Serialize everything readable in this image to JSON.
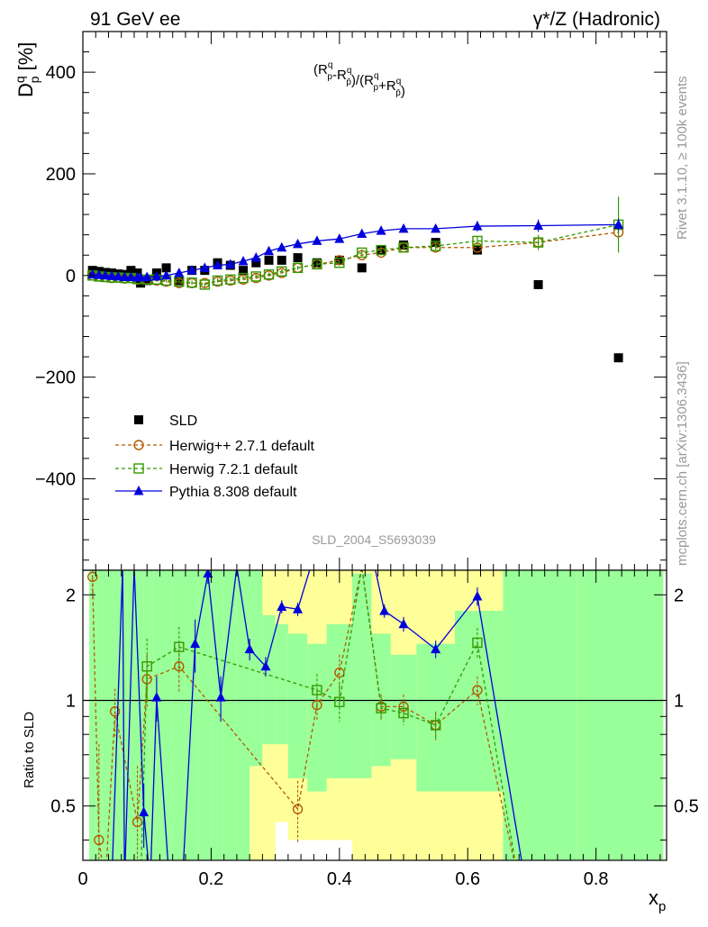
{
  "header": {
    "left": "91 GeV ee",
    "right": "γ*/Z (Hadronic)"
  },
  "side_labels": {
    "rivet": "Rivet 3.1.10, ≥ 100k events",
    "mcplots": "mcplots.cern.ch [arXiv:1306.3436]"
  },
  "analysis_id": "SLD_2004_S5693039",
  "annotation": "(R^q_p - R^q_p̄)/(R^q_p + R^q_p̄)",
  "colors": {
    "sld": "#000000",
    "herwigpp": "#b35900",
    "herwig7": "#339900",
    "pythia": "#0000dd",
    "band_green": "#99ff99",
    "band_yellow": "#ffff99"
  },
  "chart_data": [
    {
      "type": "scatter",
      "ylabel": "D^q_p [%]",
      "xlim": [
        0,
        0.91
      ],
      "ylim": [
        -580,
        480
      ],
      "yticks": [
        -400,
        -200,
        0,
        200,
        400
      ],
      "ytick_labels": [
        "−400",
        "−200",
        "0",
        "200",
        "400"
      ],
      "legend_position": "lower-left",
      "series": [
        {
          "name": "SLD",
          "marker": "square-filled",
          "x": [
            0.015,
            0.025,
            0.035,
            0.045,
            0.055,
            0.065,
            0.075,
            0.085,
            0.09,
            0.1,
            0.115,
            0.13,
            0.15,
            0.17,
            0.19,
            0.21,
            0.23,
            0.25,
            0.27,
            0.29,
            0.31,
            0.335,
            0.365,
            0.4,
            0.435,
            0.465,
            0.5,
            0.55,
            0.615,
            0.71,
            0.835
          ],
          "y": [
            10,
            8,
            6,
            5,
            3,
            2,
            10,
            5,
            -15,
            -10,
            5,
            15,
            -10,
            10,
            10,
            25,
            20,
            10,
            25,
            30,
            30,
            35,
            25,
            30,
            15,
            50,
            60,
            65,
            50,
            -18,
            -162
          ]
        },
        {
          "name": "Herwig++ 2.7.1 default",
          "marker": "circle-open",
          "line": "dashed",
          "x": [
            0.015,
            0.025,
            0.035,
            0.045,
            0.055,
            0.065,
            0.075,
            0.085,
            0.1,
            0.115,
            0.13,
            0.15,
            0.17,
            0.19,
            0.21,
            0.23,
            0.25,
            0.27,
            0.29,
            0.31,
            0.335,
            0.365,
            0.4,
            0.435,
            0.465,
            0.5,
            0.55,
            0.615,
            0.71,
            0.835
          ],
          "y": [
            0,
            -2,
            -3,
            -5,
            -4,
            -6,
            -5,
            -8,
            -8,
            -10,
            -12,
            -15,
            -15,
            -15,
            -12,
            -10,
            -8,
            -5,
            0,
            5,
            15,
            22,
            30,
            40,
            45,
            55,
            55,
            55,
            65,
            85
          ]
        },
        {
          "name": "Herwig 7.2.1 default",
          "marker": "square-open",
          "line": "dashed",
          "x": [
            0.015,
            0.025,
            0.035,
            0.045,
            0.055,
            0.065,
            0.075,
            0.085,
            0.1,
            0.115,
            0.13,
            0.15,
            0.17,
            0.19,
            0.21,
            0.23,
            0.25,
            0.27,
            0.29,
            0.31,
            0.335,
            0.365,
            0.4,
            0.435,
            0.465,
            0.5,
            0.55,
            0.615,
            0.71,
            0.835
          ],
          "y": [
            0,
            -2,
            -3,
            -4,
            -4,
            -5,
            -5,
            -7,
            -8,
            -8,
            -10,
            -12,
            -14,
            -18,
            -10,
            -8,
            -5,
            -2,
            2,
            8,
            15,
            22,
            25,
            45,
            50,
            55,
            58,
            68,
            65,
            100
          ],
          "err": [
            3,
            3,
            3,
            3,
            3,
            3,
            3,
            3,
            4,
            4,
            4,
            4,
            4,
            4,
            4,
            4,
            4,
            4,
            4,
            4,
            4,
            5,
            5,
            6,
            6,
            6,
            7,
            8,
            15,
            55
          ]
        },
        {
          "name": "Pythia 8.308 default",
          "marker": "triangle-filled",
          "line": "solid",
          "x": [
            0.015,
            0.025,
            0.035,
            0.045,
            0.055,
            0.065,
            0.075,
            0.085,
            0.09,
            0.1,
            0.115,
            0.13,
            0.15,
            0.17,
            0.19,
            0.21,
            0.23,
            0.25,
            0.27,
            0.29,
            0.31,
            0.335,
            0.365,
            0.4,
            0.435,
            0.465,
            0.5,
            0.55,
            0.615,
            0.71,
            0.835
          ],
          "y": [
            2,
            1,
            0,
            -1,
            -2,
            -3,
            -3,
            -4,
            -4,
            -3,
            -2,
            0,
            5,
            10,
            15,
            20,
            22,
            28,
            35,
            48,
            55,
            62,
            68,
            72,
            82,
            88,
            92,
            92,
            97,
            98,
            100
          ],
          "err": [
            2,
            2,
            2,
            2,
            2,
            2,
            2,
            2,
            2,
            2,
            2,
            2,
            2,
            2,
            2,
            2,
            2,
            2,
            3,
            3,
            3,
            3,
            3,
            4,
            4,
            5,
            7,
            7,
            10,
            12,
            12
          ]
        }
      ]
    },
    {
      "type": "scatter",
      "xlabel": "x_p",
      "ylabel": "Ratio to SLD",
      "xlim": [
        0,
        0.91
      ],
      "ylim": [
        0.35,
        2.35
      ],
      "xticks": [
        0,
        0.2,
        0.4,
        0.6,
        0.8
      ],
      "xtick_labels": [
        "0",
        "0.2",
        "0.4",
        "0.6",
        "0.8"
      ],
      "yticks": [
        0.5,
        1,
        2
      ],
      "ytick_labels": [
        "0.5",
        "1",
        "2"
      ],
      "reference_line": 1,
      "bands": {
        "bin_edges": [
          0.01,
          0.02,
          0.03,
          0.04,
          0.05,
          0.06,
          0.07,
          0.08,
          0.095,
          0.105,
          0.11,
          0.12,
          0.14,
          0.16,
          0.18,
          0.2,
          0.22,
          0.24,
          0.26,
          0.28,
          0.3,
          0.32,
          0.35,
          0.38,
          0.42,
          0.45,
          0.48,
          0.52,
          0.58,
          0.655,
          0.77,
          0.905
        ],
        "green_low": [
          0.35,
          0.35,
          0.35,
          0.35,
          0.35,
          0.35,
          0.35,
          0.35,
          0.35,
          0.35,
          0.35,
          0.35,
          0.35,
          0.35,
          0.35,
          0.35,
          0.35,
          0.35,
          0.65,
          0.75,
          0.75,
          0.6,
          0.55,
          0.6,
          0.6,
          0.65,
          0.68,
          0.55,
          0.55,
          0.35,
          0.35
        ],
        "green_high": [
          2.35,
          2.35,
          2.35,
          2.35,
          2.35,
          2.35,
          2.35,
          2.35,
          2.35,
          2.35,
          2.35,
          2.35,
          2.35,
          2.35,
          2.35,
          2.35,
          2.35,
          2.35,
          2.35,
          1.75,
          1.65,
          1.55,
          1.45,
          1.65,
          2.3,
          1.55,
          1.35,
          1.45,
          1.8,
          2.35,
          2.35
        ],
        "yellow_low": [
          0.35,
          0.35,
          0.35,
          0.35,
          0.35,
          0.35,
          0.35,
          0.35,
          0.35,
          0.35,
          0.35,
          0.35,
          0.35,
          0.35,
          0.35,
          0.35,
          0.35,
          0.35,
          0.35,
          0.35,
          0.45,
          0.4,
          0.4,
          0.4,
          0.35,
          0.35,
          0.35,
          0.35,
          0.35,
          0.35,
          0.35
        ],
        "yellow_high": [
          2.35,
          2.35,
          2.35,
          2.35,
          2.35,
          2.35,
          2.35,
          2.35,
          2.35,
          2.35,
          2.35,
          2.35,
          2.35,
          2.35,
          2.35,
          2.35,
          2.35,
          2.35,
          2.35,
          2.35,
          2.35,
          2.35,
          2.35,
          2.35,
          2.35,
          2.35,
          2.35,
          2.35,
          2.35,
          2.35,
          2.35
        ]
      },
      "series": [
        {
          "name": "Herwig++ 2.7.1 default",
          "marker": "circle-open",
          "line": "dashed",
          "x": [
            0.015,
            0.025,
            0.035,
            0.05,
            0.085,
            0.1,
            0.15,
            0.335,
            0.365,
            0.4,
            0.435,
            0.465,
            0.5,
            0.55,
            0.615,
            0.68
          ],
          "y": [
            2.25,
            0.4,
            0.3,
            0.93,
            0.45,
            1.15,
            1.25,
            0.49,
            0.97,
            1.2,
            2.4,
            0.96,
            0.96,
            0.85,
            1.07,
            0.3
          ],
          "err": [
            0.3,
            0.35,
            0.3,
            0.15,
            0.2,
            0.2,
            0.2,
            0.1,
            0.1,
            0.15,
            0.4,
            0.08,
            0.08,
            0.08,
            0.1,
            0.1
          ]
        },
        {
          "name": "Herwig 7.2.1 default",
          "marker": "square-open",
          "line": "dashed",
          "x": [
            0.015,
            0.03,
            0.05,
            0.09,
            0.1,
            0.15,
            0.365,
            0.4,
            0.435,
            0.465,
            0.5,
            0.55,
            0.615,
            0.68
          ],
          "y": [
            0.3,
            0.3,
            0.3,
            0.3,
            1.25,
            1.42,
            1.07,
            0.99,
            2.4,
            0.95,
            0.92,
            0.85,
            1.46,
            0.3
          ],
          "err": [
            0.3,
            0.3,
            0.3,
            0.3,
            0.25,
            0.2,
            0.12,
            0.12,
            0.4,
            0.07,
            0.07,
            0.07,
            0.15,
            0.1
          ]
        },
        {
          "name": "Pythia 8.308 default",
          "marker": "triangle-filled",
          "line": "solid",
          "x": [
            0.015,
            0.045,
            0.062,
            0.065,
            0.08,
            0.095,
            0.105,
            0.115,
            0.135,
            0.155,
            0.175,
            0.195,
            0.215,
            0.24,
            0.26,
            0.285,
            0.31,
            0.335,
            0.355,
            0.42,
            0.455,
            0.47,
            0.5,
            0.55,
            0.615,
            0.69
          ],
          "y": [
            0.3,
            0.3,
            2.4,
            0.3,
            2.4,
            0.48,
            0.3,
            1.02,
            0.3,
            0.3,
            1.45,
            2.3,
            1.02,
            2.4,
            1.4,
            1.25,
            1.85,
            1.82,
            2.4,
            2.4,
            2.4,
            1.8,
            1.65,
            1.4,
            1.98,
            0.3
          ],
          "err": [
            0.1,
            0.1,
            0.1,
            0.1,
            0.1,
            0.1,
            0.1,
            0.15,
            0.1,
            0.1,
            0.25,
            0.15,
            0.15,
            0.1,
            0.1,
            0.08,
            0.08,
            0.08,
            0.1,
            0.1,
            0.1,
            0.08,
            0.08,
            0.08,
            0.12,
            0.1
          ]
        }
      ]
    }
  ]
}
